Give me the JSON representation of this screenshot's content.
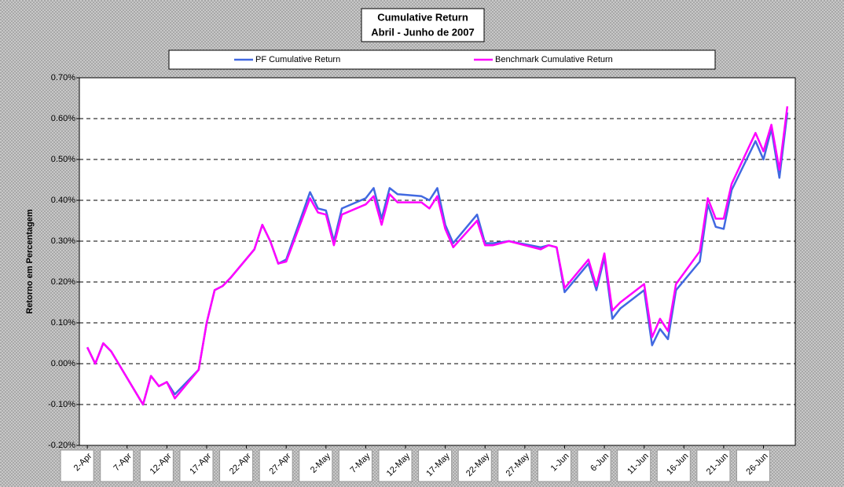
{
  "chart_data": {
    "type": "line",
    "title": "Cumulative Return",
    "subtitle": "Abril - Junho de 2007",
    "y_label": "Retorno em Percentagem",
    "x": [
      "2-Apr",
      "3-Apr",
      "4-Apr",
      "5-Apr",
      "9-Apr",
      "10-Apr",
      "11-Apr",
      "12-Apr",
      "13-Apr",
      "16-Apr",
      "17-Apr",
      "18-Apr",
      "19-Apr",
      "20-Apr",
      "23-Apr",
      "24-Apr",
      "25-Apr",
      "26-Apr",
      "27-Apr",
      "30-Apr",
      "1-May",
      "2-May",
      "3-May",
      "4-May",
      "7-May",
      "8-May",
      "9-May",
      "10-May",
      "11-May",
      "14-May",
      "15-May",
      "16-May",
      "17-May",
      "18-May",
      "21-May",
      "22-May",
      "23-May",
      "25-May",
      "29-May",
      "30-May",
      "31-May",
      "1-Jun",
      "4-Jun",
      "5-Jun",
      "6-Jun",
      "7-Jun",
      "8-Jun",
      "11-Jun",
      "12-Jun",
      "13-Jun",
      "14-Jun",
      "15-Jun",
      "18-Jun",
      "19-Jun",
      "20-Jun",
      "21-Jun",
      "22-Jun",
      "25-Jun",
      "26-Jun",
      "27-Jun",
      "28-Jun",
      "29-Jun"
    ],
    "series": [
      {
        "name": "PF Cumulative Return",
        "color": "#4169e1",
        "values": [
          0.04,
          0.0,
          0.05,
          0.03,
          -0.1,
          -0.03,
          -0.055,
          -0.045,
          -0.075,
          -0.015,
          0.1,
          0.18,
          0.19,
          0.21,
          0.28,
          0.34,
          0.3,
          0.245,
          0.255,
          0.42,
          0.38,
          0.375,
          0.3,
          0.38,
          0.405,
          0.43,
          0.355,
          0.43,
          0.415,
          0.41,
          0.4,
          0.43,
          0.34,
          0.295,
          0.365,
          0.295,
          0.295,
          0.3,
          0.285,
          0.29,
          0.285,
          0.175,
          0.245,
          0.18,
          0.26,
          0.11,
          0.135,
          0.18,
          0.045,
          0.085,
          0.06,
          0.18,
          0.25,
          0.39,
          0.335,
          0.33,
          0.425,
          0.545,
          0.5,
          0.575,
          0.455,
          0.615
        ]
      },
      {
        "name": "Benchmark Cumulative Return",
        "color": "#ff00ff",
        "values": [
          0.04,
          0.0,
          0.05,
          0.03,
          -0.1,
          -0.03,
          -0.055,
          -0.045,
          -0.085,
          -0.015,
          0.1,
          0.18,
          0.19,
          0.21,
          0.28,
          0.34,
          0.3,
          0.245,
          0.25,
          0.405,
          0.37,
          0.365,
          0.29,
          0.365,
          0.39,
          0.41,
          0.34,
          0.415,
          0.395,
          0.395,
          0.38,
          0.41,
          0.33,
          0.285,
          0.35,
          0.29,
          0.29,
          0.3,
          0.28,
          0.29,
          0.285,
          0.185,
          0.255,
          0.19,
          0.27,
          0.13,
          0.15,
          0.195,
          0.065,
          0.11,
          0.08,
          0.195,
          0.275,
          0.405,
          0.355,
          0.355,
          0.44,
          0.565,
          0.52,
          0.585,
          0.475,
          0.63
        ]
      }
    ],
    "xlim": [
      "1-Apr",
      "30-Jun"
    ],
    "xticks": [
      "2-Apr",
      "7-Apr",
      "12-Apr",
      "17-Apr",
      "22-Apr",
      "27-Apr",
      "2-May",
      "7-May",
      "12-May",
      "17-May",
      "22-May",
      "27-May",
      "1-Jun",
      "6-Jun",
      "11-Jun",
      "16-Jun",
      "21-Jun",
      "26-Jun"
    ],
    "ylim": [
      -0.2,
      0.7
    ],
    "yticks": [
      {
        "value": -0.2,
        "label": "-0.20%"
      },
      {
        "value": -0.1,
        "label": "-0.10%"
      },
      {
        "value": 0,
        "label": "0.00%"
      },
      {
        "value": 0.1,
        "label": "0.10%"
      },
      {
        "value": 0.2,
        "label": "0.20%"
      },
      {
        "value": 0.3,
        "label": "0.30%"
      },
      {
        "value": 0.4,
        "label": "0.40%"
      },
      {
        "value": 0.5,
        "label": "0.50%"
      },
      {
        "value": 0.6,
        "label": "0.60%"
      },
      {
        "value": 0.7,
        "label": "0.70%"
      }
    ],
    "grid": true,
    "legend": "top"
  }
}
